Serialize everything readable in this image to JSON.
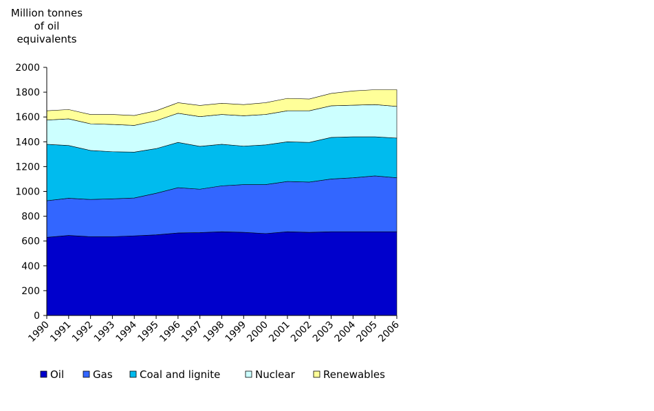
{
  "chart_data": {
    "type": "area",
    "stacked": true,
    "title": "",
    "ylabel_lines": [
      "Million tonnes",
      "of oil",
      "equivalents"
    ],
    "xlabel": "",
    "ylim": [
      0,
      2000
    ],
    "yticks": [
      0,
      200,
      400,
      600,
      800,
      1000,
      1200,
      1400,
      1600,
      1800,
      2000
    ],
    "grid": false,
    "legend_position": "bottom",
    "categories": [
      "1990",
      "1991",
      "1992",
      "1993",
      "1994",
      "1995",
      "1996",
      "1997",
      "1998",
      "1999",
      "2000",
      "2001",
      "2002",
      "2003",
      "2004",
      "2005",
      "2006"
    ],
    "series": [
      {
        "name": "Oil",
        "color": "#0000cc",
        "values": [
          630,
          645,
          635,
          635,
          642,
          650,
          665,
          668,
          675,
          670,
          660,
          675,
          670,
          675,
          675,
          675,
          675
        ]
      },
      {
        "name": "Gas",
        "color": "#3366ff",
        "values": [
          295,
          300,
          300,
          305,
          305,
          335,
          365,
          350,
          370,
          385,
          395,
          405,
          405,
          425,
          435,
          450,
          435
        ]
      },
      {
        "name": "Coal and lignite",
        "color": "#00bbee",
        "values": [
          455,
          425,
          395,
          380,
          370,
          360,
          365,
          345,
          335,
          310,
          320,
          320,
          320,
          335,
          330,
          315,
          320
        ]
      },
      {
        "name": "Nuclear",
        "color": "#ccffff",
        "values": [
          195,
          215,
          215,
          220,
          215,
          225,
          235,
          240,
          240,
          245,
          245,
          250,
          255,
          255,
          255,
          260,
          255
        ]
      },
      {
        "name": "Renewables",
        "color": "#ffff99",
        "values": [
          75,
          75,
          75,
          80,
          80,
          80,
          85,
          90,
          90,
          90,
          95,
          100,
          95,
          100,
          115,
          120,
          135
        ]
      }
    ]
  }
}
